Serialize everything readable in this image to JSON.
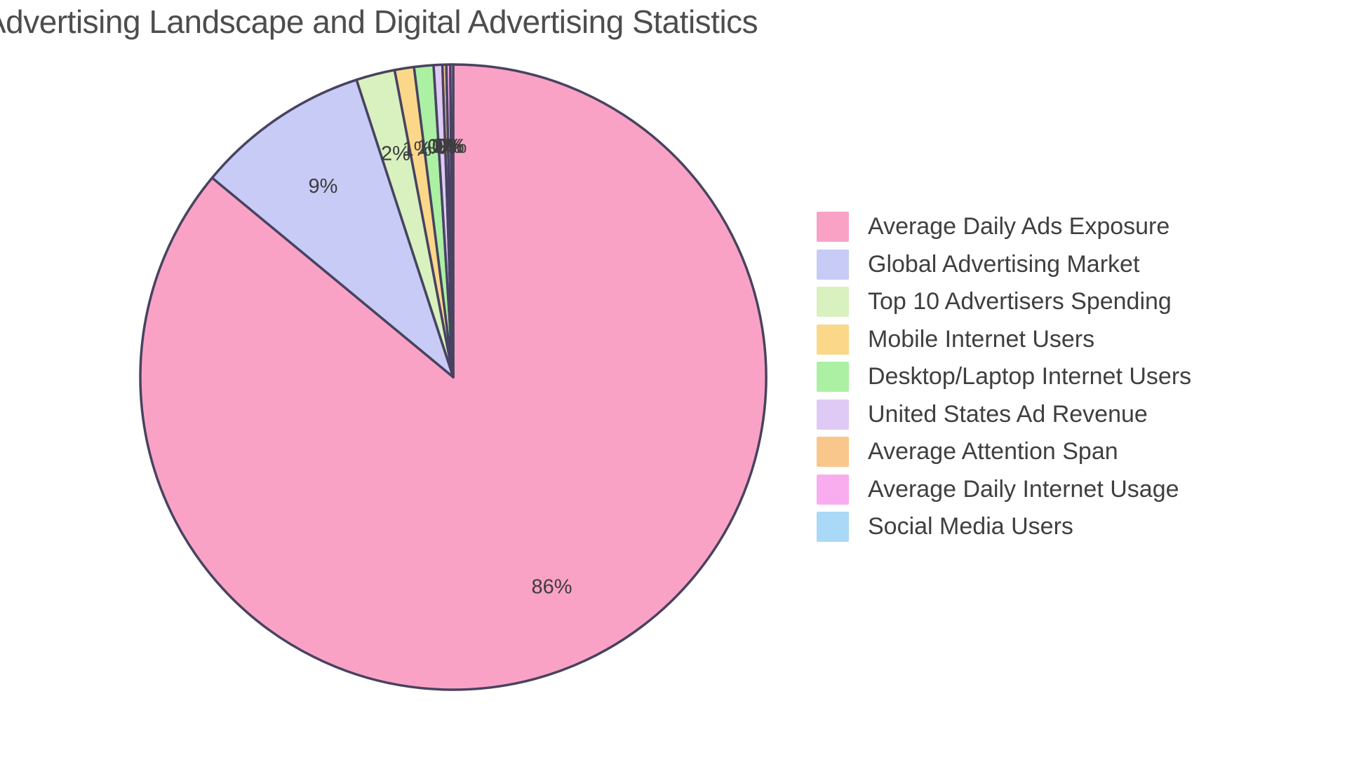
{
  "title": "Advertising Landscape and Digital Advertising Statistics",
  "chart_data": {
    "type": "pie",
    "title": "Advertising Landscape and Digital Advertising Statistics",
    "direction": "clockwise",
    "start_angle_deg": 0,
    "legend_position": "right",
    "grid": false,
    "stroke_color": "#474360",
    "percent_label_color": "#3d3d3d",
    "slices": [
      {
        "label": "Average Daily Ads Exposure",
        "percent_label": "86%",
        "fraction": 86,
        "color": "#FAA2C6"
      },
      {
        "label": "Global Advertising Market",
        "percent_label": "9%",
        "fraction": 9,
        "color": "#C8CBF6"
      },
      {
        "label": "Top 10 Advertisers Spending",
        "percent_label": "2%",
        "fraction": 2,
        "color": "#D8F1BF"
      },
      {
        "label": "Mobile Internet Users",
        "percent_label": "1%",
        "fraction": 1,
        "color": "#FBD78A"
      },
      {
        "label": "Desktop/Laptop Internet Users",
        "percent_label": "1%",
        "fraction": 1,
        "color": "#ABF0A3"
      },
      {
        "label": "United States Ad Revenue",
        "percent_label": "0%",
        "fraction": 0.45,
        "color": "#DFCAF6"
      },
      {
        "label": "Average Attention Span",
        "percent_label": "0%",
        "fraction": 0.2,
        "color": "#F9C78C"
      },
      {
        "label": "Average Daily Internet Usage",
        "percent_label": "0%",
        "fraction": 0.2,
        "color": "#F9ADEF"
      },
      {
        "label": "Social Media Users",
        "percent_label": "0%",
        "fraction": 0.15,
        "color": "#AAD8F7"
      }
    ]
  }
}
